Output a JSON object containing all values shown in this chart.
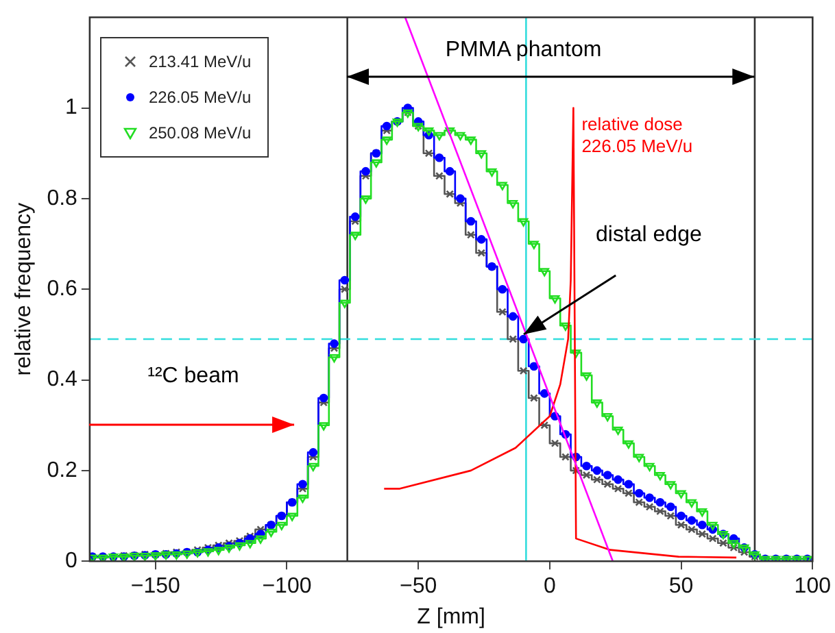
{
  "chart_data": {
    "type": "step",
    "xlabel": "Z [mm]",
    "ylabel": "relative frequency",
    "x": [
      -174,
      -170,
      -166,
      -162,
      -158,
      -154,
      -150,
      -146,
      -142,
      -138,
      -134,
      -130,
      -126,
      -122,
      -118,
      -114,
      -110,
      -106,
      -102,
      -98,
      -94,
      -90,
      -86,
      -82,
      -78,
      -74,
      -70,
      -66,
      -62,
      -58,
      -54,
      -50,
      -46,
      -42,
      -38,
      -34,
      -30,
      -26,
      -22,
      -18,
      -14,
      -10,
      -6,
      -2,
      2,
      6,
      10,
      14,
      18,
      22,
      26,
      30,
      34,
      38,
      42,
      46,
      50,
      54,
      58,
      62,
      66,
      70,
      74,
      78,
      82,
      86,
      90,
      94,
      98
    ],
    "series": [
      {
        "name": "213.41 MeV/u",
        "color": "#555555",
        "marker": "cross",
        "values": [
          0.01,
          0.01,
          0.01,
          0.012,
          0.013,
          0.015,
          0.015,
          0.017,
          0.02,
          0.02,
          0.025,
          0.03,
          0.035,
          0.04,
          0.045,
          0.055,
          0.07,
          0.08,
          0.1,
          0.13,
          0.16,
          0.23,
          0.35,
          0.47,
          0.6,
          0.75,
          0.85,
          0.9,
          0.95,
          0.97,
          0.99,
          0.96,
          0.9,
          0.85,
          0.81,
          0.79,
          0.72,
          0.68,
          0.65,
          0.55,
          0.49,
          0.42,
          0.36,
          0.3,
          0.26,
          0.23,
          0.2,
          0.19,
          0.18,
          0.17,
          0.16,
          0.15,
          0.13,
          0.12,
          0.11,
          0.1,
          0.08,
          0.07,
          0.06,
          0.05,
          0.04,
          0.03,
          0.02,
          0.01,
          0.005,
          0.005,
          0.005,
          0.005,
          0.005
        ]
      },
      {
        "name": "226.05 MeV/u",
        "color": "#0000ff",
        "marker": "circle",
        "values": [
          0.01,
          0.01,
          0.01,
          0.01,
          0.012,
          0.013,
          0.015,
          0.015,
          0.017,
          0.02,
          0.02,
          0.025,
          0.03,
          0.033,
          0.04,
          0.05,
          0.06,
          0.08,
          0.1,
          0.13,
          0.17,
          0.24,
          0.36,
          0.48,
          0.62,
          0.76,
          0.86,
          0.9,
          0.96,
          0.97,
          1.0,
          0.97,
          0.94,
          0.89,
          0.86,
          0.8,
          0.75,
          0.71,
          0.65,
          0.6,
          0.54,
          0.49,
          0.43,
          0.37,
          0.32,
          0.28,
          0.23,
          0.21,
          0.2,
          0.19,
          0.18,
          0.17,
          0.15,
          0.14,
          0.13,
          0.12,
          0.1,
          0.09,
          0.08,
          0.07,
          0.06,
          0.05,
          0.03,
          0.015,
          0.005,
          0.005,
          0.005,
          0.005,
          0.005
        ]
      },
      {
        "name": "250.08 MeV/u",
        "color": "#22dd22",
        "marker": "triangle",
        "values": [
          0.008,
          0.008,
          0.01,
          0.01,
          0.012,
          0.012,
          0.013,
          0.015,
          0.015,
          0.017,
          0.02,
          0.022,
          0.025,
          0.03,
          0.035,
          0.04,
          0.05,
          0.065,
          0.08,
          0.1,
          0.14,
          0.21,
          0.3,
          0.45,
          0.57,
          0.72,
          0.8,
          0.88,
          0.93,
          0.97,
          0.99,
          0.96,
          0.95,
          0.94,
          0.95,
          0.94,
          0.93,
          0.9,
          0.86,
          0.83,
          0.79,
          0.75,
          0.7,
          0.64,
          0.58,
          0.52,
          0.46,
          0.41,
          0.35,
          0.32,
          0.29,
          0.26,
          0.23,
          0.21,
          0.19,
          0.17,
          0.15,
          0.13,
          0.11,
          0.08,
          0.06,
          0.04,
          0.03,
          0.015,
          0.005,
          0.005,
          0.005,
          0.005,
          0.005
        ]
      },
      {
        "type": "line",
        "name": "relative dose\n226.05 MeV/u",
        "color": "#ff0000",
        "marker": "none",
        "x": [
          -63,
          -57,
          -30,
          -13,
          0,
          4,
          7,
          8,
          9,
          10,
          23,
          49,
          71
        ],
        "values": [
          0.16,
          0.16,
          0.2,
          0.25,
          0.32,
          0.39,
          0.49,
          0.62,
          1.0,
          0.05,
          0.025,
          0.01,
          0.008
        ]
      },
      {
        "type": "line",
        "color": "#ff00ff",
        "marker": "none",
        "x": [
          -55,
          24
        ],
        "values": [
          1.2,
          0
        ]
      }
    ],
    "xlim": [
      -175,
      100
    ],
    "xticks": [
      -150,
      -100,
      -50,
      0,
      50,
      100
    ],
    "ylim": [
      0,
      1.2
    ],
    "yticks": [
      0,
      0.2,
      0.4,
      0.6,
      0.8,
      1
    ],
    "grid": false,
    "legend": "top left",
    "ref_lines": [
      {
        "axis": "x",
        "value": -77,
        "color": "#333333"
      },
      {
        "axis": "x",
        "value": 78,
        "color": "#333333"
      },
      {
        "axis": "y",
        "value": 0.49,
        "color": "#33dddd",
        "line_style": "dashed"
      },
      {
        "axis": "x",
        "value": -9,
        "color": "#33dddd"
      }
    ],
    "annotations": [
      "PMMA phantom",
      "distal edge",
      "¹²C beam"
    ]
  }
}
